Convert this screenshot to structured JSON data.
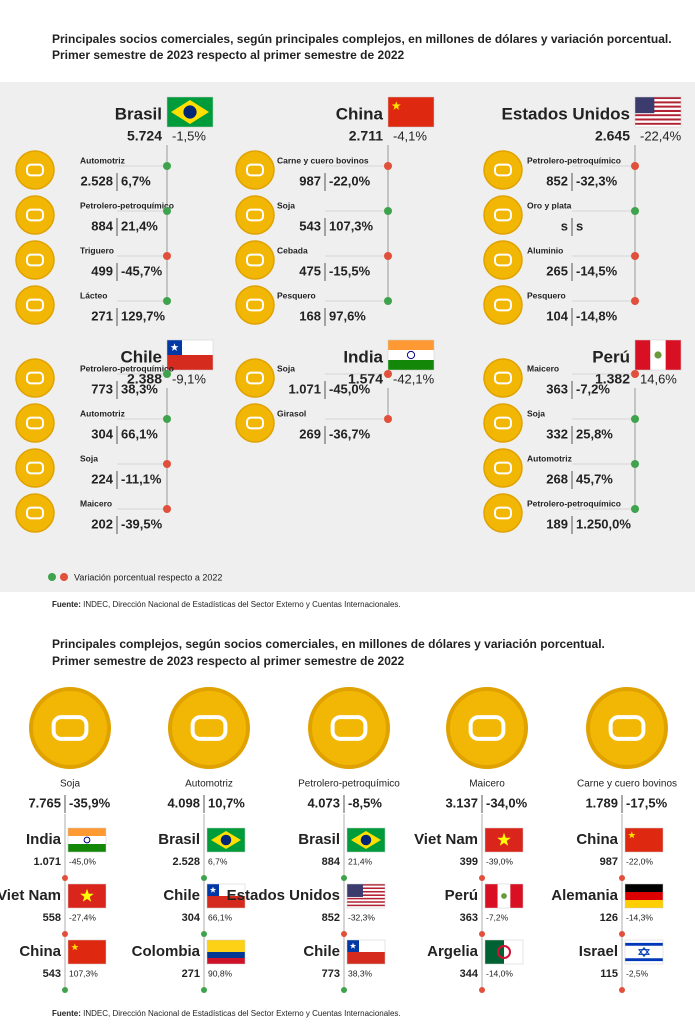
{
  "top": {
    "title": [
      "Principales socios comerciales, según principales complejos, en millones de dólares y variación porcentual.",
      "Primer semestre de 2023 respecto al primer semestre de 2022"
    ],
    "countries": [
      {
        "name": "Brasil",
        "total": "5.724",
        "change": "-1,5%",
        "items": [
          {
            "label": "Automotriz",
            "value": "2.528",
            "change": "6,7%"
          },
          {
            "label": "Petrolero-petroquímico",
            "value": "884",
            "change": "21,4%"
          },
          {
            "label": "Triguero",
            "value": "499",
            "change": "-45,7%"
          },
          {
            "label": "Lácteo",
            "value": "271",
            "change": "129,7%"
          }
        ]
      },
      {
        "name": "China",
        "total": "2.711",
        "change": "-4,1%",
        "items": [
          {
            "label": "Carne y cuero bovinos",
            "value": "987",
            "change": "-22,0%"
          },
          {
            "label": "Soja",
            "value": "543",
            "change": "107,3%"
          },
          {
            "label": "Cebada",
            "value": "475",
            "change": "-15,5%"
          },
          {
            "label": "Pesquero",
            "value": "168",
            "change": "97,6%"
          }
        ]
      },
      {
        "name": "Estados Unidos",
        "total": "2.645",
        "change": "-22,4%",
        "items": [
          {
            "label": "Petrolero-petroquímico",
            "value": "852",
            "change": "-32,3%"
          },
          {
            "label": "Oro y plata",
            "value": "s",
            "change": "s"
          },
          {
            "label": "Aluminio",
            "value": "265",
            "change": "-14,5%"
          },
          {
            "label": "Pesquero",
            "value": "104",
            "change": "-14,8%"
          }
        ]
      },
      {
        "name": "Chile",
        "total": "2.388",
        "change": "-9,1%",
        "items": [
          {
            "label": "Petrolero-petroquímico",
            "value": "773",
            "change": "38,3%"
          },
          {
            "label": "Automotriz",
            "value": "304",
            "change": "66,1%"
          },
          {
            "label": "Soja",
            "value": "224",
            "change": "-11,1%"
          },
          {
            "label": "Maicero",
            "value": "202",
            "change": "-39,5%"
          }
        ]
      },
      {
        "name": "India",
        "total": "1.574",
        "change": "-42,1%",
        "items": [
          {
            "label": "Soja",
            "value": "1.071",
            "change": "-45,0%"
          },
          {
            "label": "Girasol",
            "value": "269",
            "change": "-36,7%"
          }
        ]
      },
      {
        "name": "Perú",
        "total": "1.382",
        "change": "14,6%",
        "items": [
          {
            "label": "Maicero",
            "value": "363",
            "change": "-7,2%"
          },
          {
            "label": "Soja",
            "value": "332",
            "change": "25,8%"
          },
          {
            "label": "Automotriz",
            "value": "268",
            "change": "45,7%"
          },
          {
            "label": "Petrolero-petroquímico",
            "value": "189",
            "change": "1.250,0%"
          }
        ]
      }
    ],
    "legend": "Variación porcentual respecto a 2022",
    "source_label": "Fuente:",
    "source": "INDEC, Dirección Nacional de Estadísticas del Sector Externo y Cuentas Internacionales."
  },
  "bottom": {
    "title": [
      "Principales complejos, según socios comerciales, en millones de dólares y variación porcentual.",
      "Primer semestre de 2023 respecto al primer semestre de 2022"
    ],
    "complexes": [
      {
        "name": "Soja",
        "total": "7.765",
        "change": "-35,9%",
        "partners": [
          {
            "name": "India",
            "value": "1.071",
            "change": "-45,0%"
          },
          {
            "name": "Viet Nam",
            "value": "558",
            "change": "-27,4%"
          },
          {
            "name": "China",
            "value": "543",
            "change": "107,3%"
          }
        ]
      },
      {
        "name": "Automotriz",
        "total": "4.098",
        "change": "10,7%",
        "partners": [
          {
            "name": "Brasil",
            "value": "2.528",
            "change": "6,7%"
          },
          {
            "name": "Chile",
            "value": "304",
            "change": "66,1%"
          },
          {
            "name": "Colombia",
            "value": "271",
            "change": "90,8%"
          }
        ]
      },
      {
        "name": "Petrolero-petroquímico",
        "total": "4.073",
        "change": "-8,5%",
        "partners": [
          {
            "name": "Brasil",
            "value": "884",
            "change": "21,4%"
          },
          {
            "name": "Estados Unidos",
            "value": "852",
            "change": "-32,3%"
          },
          {
            "name": "Chile",
            "value": "773",
            "change": "38,3%"
          }
        ]
      },
      {
        "name": "Maicero",
        "total": "3.137",
        "change": "-34,0%",
        "partners": [
          {
            "name": "Viet Nam",
            "value": "399",
            "change": "-39,0%"
          },
          {
            "name": "Perú",
            "value": "363",
            "change": "-7,2%"
          },
          {
            "name": "Argelia",
            "value": "344",
            "change": "-14,0%"
          }
        ]
      },
      {
        "name": "Carne y cuero bovinos",
        "total": "1.789",
        "change": "-17,5%",
        "partners": [
          {
            "name": "China",
            "value": "987",
            "change": "-22,0%"
          },
          {
            "name": "Alemania",
            "value": "126",
            "change": "-14,3%"
          },
          {
            "name": "Israel",
            "value": "115",
            "change": "-2,5%"
          }
        ]
      }
    ],
    "source_label": "Fuente:",
    "source": "INDEC, Dirección Nacional de Estadísticas del Sector Externo y Cuentas Internacionales."
  }
}
